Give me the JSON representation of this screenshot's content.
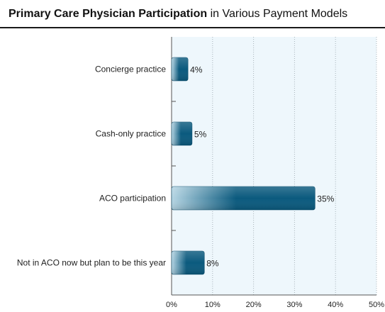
{
  "header": {
    "title_bold": "Primary Care Physician Participation",
    "title_rest": "in Various Payment Models"
  },
  "colors": {
    "bar_dark": "#0b5a7e",
    "bar_light": "#b5d5e3",
    "plot_background": "#eef7fc",
    "grid": "#a8b3ba"
  },
  "chart_data": {
    "type": "bar",
    "orientation": "horizontal",
    "title": "Primary Care Physician Participation in Various Payment Models",
    "categories": [
      "Concierge practice",
      "Cash-only practice",
      "ACO participation",
      "Not in ACO now but plan to be this year"
    ],
    "values": [
      4,
      5,
      35,
      8
    ],
    "data_labels": [
      "4%",
      "5%",
      "35%",
      "8%"
    ],
    "xlim": [
      0,
      50
    ],
    "x_ticks": [
      0,
      10,
      20,
      30,
      40,
      50
    ],
    "x_tick_labels": [
      "0%",
      "10%",
      "20%",
      "30%",
      "40%",
      "50%"
    ],
    "xlabel": "",
    "ylabel": "",
    "grid": "vertical dotted",
    "legend": "none"
  }
}
